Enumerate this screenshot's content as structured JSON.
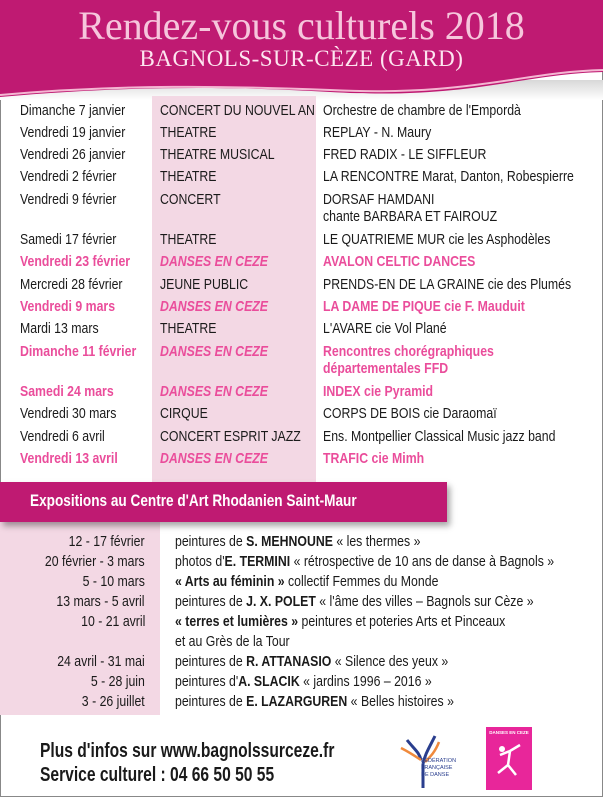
{
  "header": {
    "title": "Rendez-vous culturels 2018",
    "subtitle": "BAGNOLS-SUR-CÈZE (GARD)"
  },
  "colors": {
    "brand": "#bf1a72",
    "column": "#f3d8e4",
    "highlight": "#ea4d9b"
  },
  "events": [
    {
      "date": "Dimanche 7 janvier",
      "type": "CONCERT DU NOUVEL AN",
      "title": [
        "Orchestre de chambre de l'Empordà"
      ],
      "dance": false
    },
    {
      "date": "Vendredi 19 janvier",
      "type": "THEATRE",
      "title": [
        "REPLAY - N. Maury"
      ],
      "dance": false
    },
    {
      "date": "Vendredi 26 janvier",
      "type": "THEATRE MUSICAL",
      "title": [
        "FRED RADIX - LE SIFFLEUR"
      ],
      "dance": false
    },
    {
      "date": "Vendredi 2 février",
      "type": "THEATRE",
      "title": [
        "LA RENCONTRE Marat, Danton, Robespierre"
      ],
      "dance": false
    },
    {
      "date": "Vendredi 9 février",
      "type": "CONCERT",
      "title": [
        "DORSAF HAMDANI",
        "chante BARBARA ET FAIROUZ"
      ],
      "dance": false
    },
    {
      "date": "Samedi 17 février",
      "type": "THEATRE",
      "title": [
        "LE QUATRIEME MUR cie les Asphodèles"
      ],
      "dance": false
    },
    {
      "date": "Vendredi 23 février",
      "type": "DANSES EN CEZE",
      "title": [
        "AVALON CELTIC DANCES"
      ],
      "dance": true
    },
    {
      "date": "Mercredi 28 février",
      "type": "JEUNE PUBLIC",
      "title": [
        "PRENDS-EN DE LA GRAINE cie des Plumés"
      ],
      "dance": false
    },
    {
      "date": "Vendredi 9 mars",
      "type": "DANSES EN CEZE",
      "title": [
        "LA DAME DE PIQUE cie F. Mauduit"
      ],
      "dance": true
    },
    {
      "date": "Mardi 13 mars",
      "type": "THEATRE",
      "title": [
        "L'AVARE cie Vol Plané"
      ],
      "dance": false
    },
    {
      "date": "Dimanche 11 février",
      "type": "DANSES EN CEZE",
      "title": [
        "Rencontres chorégraphiques",
        "départementales FFD"
      ],
      "dance": true
    },
    {
      "date": "Samedi 24 mars",
      "type": "DANSES EN CEZE",
      "title": [
        "INDEX cie Pyramid"
      ],
      "dance": true
    },
    {
      "date": "Vendredi 30 mars",
      "type": "CIRQUE",
      "title": [
        "CORPS DE BOIS cie Daraomaï"
      ],
      "dance": false
    },
    {
      "date": "Vendredi 6 avril",
      "type": "CONCERT ESPRIT JAZZ",
      "title": [
        "Ens. Montpellier Classical Music jazz band"
      ],
      "dance": false
    },
    {
      "date": "Vendredi 13 avril",
      "type": "DANSES EN CEZE",
      "title": [
        "TRAFIC cie Mimh"
      ],
      "dance": true
    }
  ],
  "expositions": {
    "heading": "Expositions au Centre d'Art Rhodanien Saint-Maur",
    "items": [
      {
        "date": "12 - 17 février",
        "lines": [
          [
            {
              "t": "peintures de "
            },
            {
              "b": "S. MEHNOUNE"
            },
            {
              "t": " « les thermes »"
            }
          ]
        ]
      },
      {
        "date": "20 février - 3 mars",
        "lines": [
          [
            {
              "t": "photos d'"
            },
            {
              "b": "E. TERMINI"
            },
            {
              "t": " « rétrospective de 10 ans de danse à Bagnols »"
            }
          ]
        ]
      },
      {
        "date": "5 - 10 mars",
        "lines": [
          [
            {
              "b": "« Arts au féminin »"
            },
            {
              "t": " collectif Femmes du Monde"
            }
          ]
        ]
      },
      {
        "date": "13 mars - 5 avril",
        "lines": [
          [
            {
              "t": "peintures de "
            },
            {
              "b": "J. X. POLET"
            },
            {
              "t": " « l'âme des villes – Bagnols sur Cèze »"
            }
          ]
        ]
      },
      {
        "date": "10 - 21 avril",
        "lines": [
          [
            {
              "b": "« terres et lumières »"
            },
            {
              "t": " peintures et poteries Arts et Pinceaux"
            }
          ],
          [
            {
              "t": "et au Grès de la Tour"
            }
          ]
        ]
      },
      {
        "date": "24 avril - 31 mai",
        "lines": [
          [
            {
              "t": "peintures de "
            },
            {
              "b": "R. ATTANASIO"
            },
            {
              "t": " « Silence des yeux »"
            }
          ]
        ]
      },
      {
        "date": "5 - 28 juin",
        "lines": [
          [
            {
              "t": "peintures d'"
            },
            {
              "b": "A. SLACIK"
            },
            {
              "t": " « jardins 1996 – 2016 »"
            }
          ]
        ]
      },
      {
        "date": "3 - 26 juillet",
        "lines": [
          [
            {
              "t": "peintures de "
            },
            {
              "b": "E. LAZARGUREN"
            },
            {
              "t": " « Belles histoires »"
            }
          ]
        ]
      }
    ]
  },
  "footer": {
    "info": "Plus d'infos sur www.bagnolssurceze.fr",
    "phone": "Service culturel : 04 66 50 50 55"
  },
  "logos": {
    "ffd": "FÉDÉRATION FRANÇAISE DE DANSE",
    "danses": "DANSES EN CEZE"
  }
}
